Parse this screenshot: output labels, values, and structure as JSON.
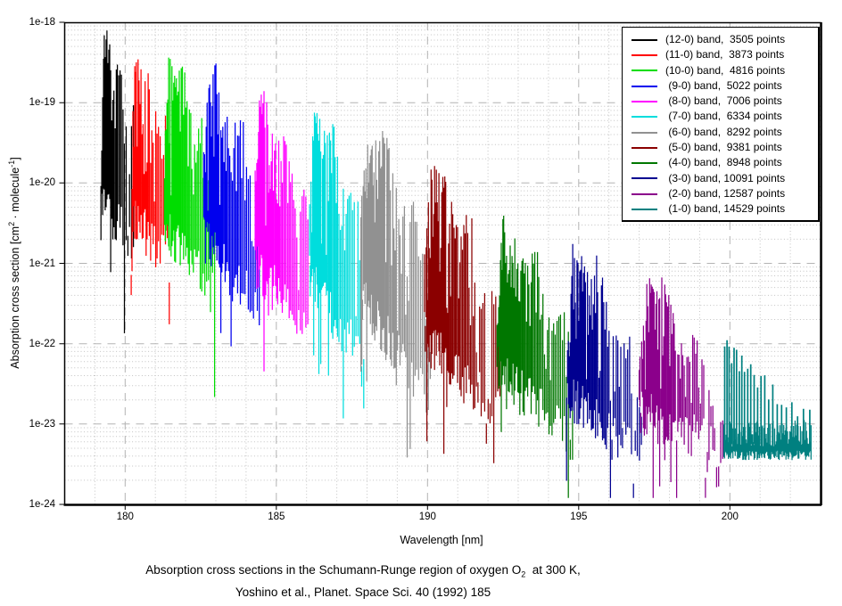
{
  "figure": {
    "bg": "#ffffff"
  },
  "chart_data": {
    "type": "line",
    "title": "Absorption cross sections in the Schumann-Runge region of oxygen O2 at 300 K, Yoshino et al., Planet. Space Sci. 40 (1992) 185",
    "caption": {
      "parts": [
        "Absorption cross sections in the Schumann-Runge region of oxygen O",
        "2",
        "  at 300 K,"
      ],
      "line2": "Yoshino et al., Planet. Space Sci. 40 (1992) 185"
    },
    "xlabel": "Wavelength [nm]",
    "ylabel_parts": [
      "Absorption cross section [cm",
      "2",
      " · molecule",
      "-1",
      "]"
    ],
    "x_axis": {
      "min": 178,
      "max": 203,
      "major_ticks": [
        180,
        185,
        190,
        195,
        200
      ],
      "minor_step": 1
    },
    "y_axis": {
      "log": true,
      "min_exp": -24,
      "max_exp": -18,
      "tick_exps": [
        -18,
        -19,
        -20,
        -21,
        -22,
        -23,
        -24
      ],
      "tick_labels": [
        "1e-18",
        "1e-19",
        "1e-20",
        "1e-21",
        "1e-22",
        "1e-23",
        "1e-24"
      ]
    },
    "grid": {
      "major_color": "#b3b3b3",
      "minor_color": "#c2c2c2",
      "major_dash": "9 7",
      "minor_dash": "1 2.6"
    },
    "legend_position": "top-right",
    "series": [
      {
        "band": "12-0",
        "points": 3505,
        "legend_label": "(12-0) band,  3505 points",
        "color": "#000000",
        "nm": [
          179.2,
          180.3
        ],
        "log_peak": -18.09,
        "log_end_max": -19.25,
        "log_head_min": -20.2,
        "log_end_min": -20.75,
        "render": "dense"
      },
      {
        "band": "11-0",
        "points": 3873,
        "legend_label": "(11-0) band,  3873 points",
        "color": "#ff0000",
        "nm": [
          180.2,
          181.5
        ],
        "log_peak": -18.28,
        "log_end_max": -19.55,
        "log_head_min": -20.35,
        "log_end_min": -21.0,
        "render": "dense"
      },
      {
        "band": "10-0",
        "points": 4816,
        "legend_label": "(10-0) band,  4816 points",
        "color": "#00dd00",
        "nm": [
          181.3,
          183.0
        ],
        "log_peak": -18.39,
        "log_end_max": -19.9,
        "log_head_min": -20.5,
        "log_end_min": -21.4,
        "render": "dense"
      },
      {
        "band": "9-0",
        "points": 5022,
        "legend_label": " (9-0) band,  5022 points",
        "color": "#0000ee",
        "nm": [
          182.6,
          184.5
        ],
        "log_peak": -18.44,
        "log_end_max": -20.05,
        "log_head_min": -20.7,
        "log_end_min": -21.6,
        "render": "dense"
      },
      {
        "band": "8-0",
        "points": 7006,
        "legend_label": " (8-0) band,  7006 points",
        "color": "#ff00ff",
        "nm": [
          184.3,
          186.1
        ],
        "log_peak": -18.83,
        "log_end_max": -20.4,
        "log_head_min": -21.0,
        "log_end_min": -21.8,
        "render": "dense"
      },
      {
        "band": "7-0",
        "points": 6334,
        "legend_label": " (7-0) band,  6334 points",
        "color": "#00dddd",
        "nm": [
          186.1,
          187.9
        ],
        "log_peak": -19.0,
        "log_end_max": -20.6,
        "log_head_min": -21.2,
        "log_end_min": -22.15,
        "render": "dense"
      },
      {
        "band": "6-0",
        "points": 8292,
        "legend_label": " (6-0) band,  8292 points",
        "color": "#919191",
        "nm": [
          187.8,
          190.1
        ],
        "log_peak": -19.13,
        "log_end_max": -21.0,
        "log_head_min": -21.4,
        "log_end_min": -22.7,
        "render": "dense"
      },
      {
        "band": "5-0",
        "points": 9381,
        "legend_label": " (5-0) band,  9381 points",
        "color": "#8b0000",
        "nm": [
          189.9,
          192.4
        ],
        "log_peak": -19.66,
        "log_end_max": -21.5,
        "log_head_min": -21.9,
        "log_end_min": -22.9,
        "render": "dense"
      },
      {
        "band": "4-0",
        "points": 8948,
        "legend_label": " (4-0) band,  8948 points",
        "color": "#007700",
        "nm": [
          192.3,
          194.8
        ],
        "log_peak": -20.33,
        "log_end_max": -22.0,
        "log_head_min": -22.3,
        "log_end_min": -23.2,
        "render": "dense"
      },
      {
        "band": "3-0",
        "points": 10091,
        "legend_label": " (3-0) band, 10091 points",
        "color": "#000090",
        "nm": [
          194.6,
          197.1
        ],
        "log_peak": -20.66,
        "log_end_max": -22.4,
        "log_head_min": -22.6,
        "log_end_min": -23.35,
        "render": "dense"
      },
      {
        "band": "2-0",
        "points": 12587,
        "legend_label": " (2-0) band, 12587 points",
        "color": "#8b008b",
        "nm": [
          197.0,
          199.8
        ],
        "log_peak": -21.05,
        "log_end_max": -22.75,
        "log_head_min": -22.85,
        "log_end_min": -23.25,
        "render": "dense"
      },
      {
        "band": "1-0",
        "points": 14529,
        "legend_label": " (1-0) band, 14529 points",
        "color": "#008080",
        "nm": [
          199.8,
          202.7
        ],
        "log_peak": -21.91,
        "log_end_max": -22.88,
        "log_head_min": -23.0,
        "log_end_min": -23.3,
        "render": "comb",
        "baseline": -23.15
      }
    ]
  }
}
